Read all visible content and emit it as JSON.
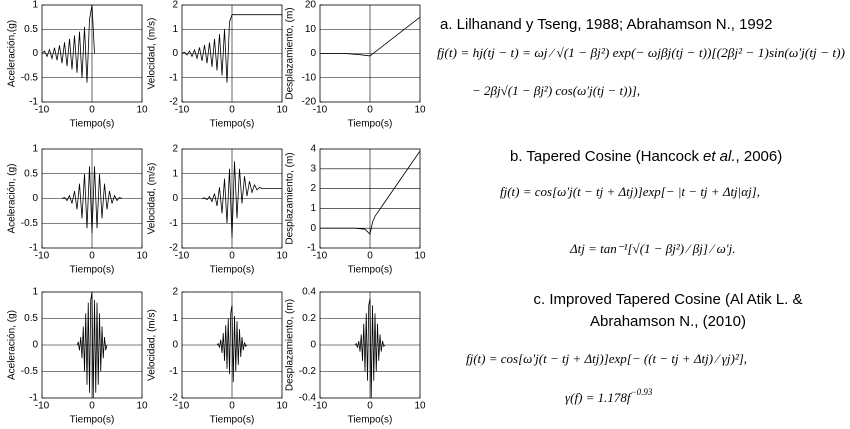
{
  "chart_data": [
    {
      "type": "line",
      "ylabel": "Aceleración,(g)",
      "xlabel": "Tiempo(s)",
      "xlim": [
        -10,
        10
      ],
      "ylim": [
        -1,
        1
      ],
      "xticks": [
        -10,
        0,
        10
      ],
      "yticks": [
        -1,
        -0.5,
        0,
        0.5,
        1
      ],
      "x": [
        -10,
        -9.5,
        -9,
        -8.5,
        -8,
        -7.5,
        -7,
        -6.5,
        -6,
        -5.5,
        -5,
        -4.5,
        -4,
        -3.5,
        -3,
        -2.5,
        -2,
        -1.5,
        -1,
        -0.5,
        0,
        0.5
      ],
      "values": [
        0,
        0.05,
        -0.06,
        0.08,
        -0.1,
        0.12,
        -0.14,
        0.17,
        -0.2,
        0.23,
        -0.26,
        0.3,
        -0.33,
        0.37,
        -0.4,
        0.45,
        -0.5,
        0.55,
        -0.6,
        0.7,
        1,
        0
      ]
    },
    {
      "type": "line",
      "ylabel": "Velocidad, (m/s)",
      "xlabel": "Tiempo(s)",
      "xlim": [
        -10,
        10
      ],
      "ylim": [
        -2,
        2
      ],
      "xticks": [
        -10,
        0,
        10
      ],
      "yticks": [
        -2,
        -1,
        0,
        1,
        2
      ],
      "x": [
        -10,
        -9.5,
        -9,
        -8.5,
        -8,
        -7.5,
        -7,
        -6.5,
        -6,
        -5.5,
        -5,
        -4.5,
        -4,
        -3.5,
        -3,
        -2.5,
        -2,
        -1.5,
        -1,
        -0.5,
        0,
        10
      ],
      "values": [
        0,
        0.05,
        -0.06,
        0.1,
        -0.12,
        0.15,
        -0.2,
        0.25,
        -0.3,
        0.35,
        -0.4,
        0.45,
        -0.55,
        0.6,
        -0.7,
        0.8,
        -0.9,
        1,
        -1.2,
        1.3,
        1.6,
        1.6
      ]
    },
    {
      "type": "line",
      "ylabel": "Desplazamiento, (m)",
      "xlabel": "Tiempo(s)",
      "xlim": [
        -10,
        10
      ],
      "ylim": [
        -20,
        20
      ],
      "xticks": [
        -10,
        0,
        10
      ],
      "yticks": [
        -20,
        -10,
        0,
        10,
        20
      ],
      "x": [
        -10,
        -5,
        -2,
        0,
        10
      ],
      "values": [
        0,
        0,
        -0.5,
        -1,
        15
      ]
    },
    {
      "type": "line",
      "ylabel": "Aceleración, (g)",
      "xlabel": "Tiempo(s)",
      "xlim": [
        -10,
        10
      ],
      "ylim": [
        -1,
        1
      ],
      "xticks": [
        -10,
        0,
        10
      ],
      "yticks": [
        -1,
        -0.5,
        0,
        0.5,
        1
      ],
      "x": [
        -6,
        -5.5,
        -5,
        -4.5,
        -4,
        -3.5,
        -3,
        -2.5,
        -2,
        -1.5,
        -1,
        -0.5,
        0,
        0.5,
        1,
        1.5,
        2,
        2.5,
        3,
        3.5,
        4,
        4.5,
        5,
        5.5,
        6
      ],
      "values": [
        0,
        0.02,
        -0.04,
        0.06,
        -0.1,
        0.15,
        -0.22,
        0.3,
        -0.4,
        0.5,
        -0.6,
        0.65,
        -0.7,
        0.65,
        -0.6,
        0.5,
        -0.4,
        0.3,
        -0.22,
        0.15,
        -0.1,
        0.06,
        -0.04,
        0.02,
        0
      ]
    },
    {
      "type": "line",
      "ylabel": "Velocidad, (m/s)",
      "xlabel": "Tiempo(s)",
      "xlim": [
        -10,
        10
      ],
      "ylim": [
        -2,
        2
      ],
      "xticks": [
        -10,
        0,
        10
      ],
      "yticks": [
        -2,
        -1,
        0,
        1,
        2
      ],
      "x": [
        -6,
        -5.5,
        -5,
        -4.5,
        -4,
        -3.5,
        -3,
        -2.5,
        -2,
        -1.5,
        -1,
        -0.5,
        0,
        0.5,
        1,
        1.5,
        2,
        2.5,
        3,
        3.5,
        4,
        4.5,
        5,
        5.5,
        6,
        10
      ],
      "values": [
        0,
        0.03,
        -0.05,
        0.08,
        -0.12,
        0.2,
        -0.3,
        0.45,
        -0.6,
        0.8,
        -1,
        1.2,
        -1.6,
        1.5,
        -0.8,
        1.2,
        -0.2,
        0.9,
        0.1,
        0.7,
        0.25,
        0.55,
        0.35,
        0.45,
        0.4,
        0.4
      ]
    },
    {
      "type": "line",
      "ylabel": "Desplazamiento, (m)",
      "xlabel": "Tiempo(s)",
      "xlim": [
        -10,
        10
      ],
      "ylim": [
        -1,
        4
      ],
      "xticks": [
        -10,
        0,
        10
      ],
      "yticks": [
        -1,
        0,
        1,
        2,
        3,
        4
      ],
      "x": [
        -10,
        -3,
        -1,
        0,
        0.5,
        1,
        10
      ],
      "values": [
        0,
        0,
        -0.05,
        -0.3,
        0.3,
        0.6,
        3.9
      ]
    },
    {
      "type": "line",
      "ylabel": "Aceleración, (g)",
      "xlabel": "Tiempo(s)",
      "xlim": [
        -10,
        10
      ],
      "ylim": [
        -1,
        1
      ],
      "xticks": [
        -10,
        0,
        10
      ],
      "yticks": [
        -1,
        -0.5,
        0,
        0.5,
        1
      ],
      "x": [
        -3,
        -2.75,
        -2.5,
        -2.25,
        -2,
        -1.75,
        -1.5,
        -1.25,
        -1,
        -0.75,
        -0.5,
        -0.25,
        0,
        0.25,
        0.5,
        0.75,
        1,
        1.25,
        1.5,
        1.75,
        2,
        2.25,
        2.5,
        2.75,
        3
      ],
      "values": [
        0,
        0.05,
        -0.1,
        0.15,
        -0.25,
        0.35,
        -0.5,
        0.6,
        -0.75,
        0.8,
        -0.9,
        0.85,
        1,
        -1,
        0.85,
        -0.9,
        0.8,
        -0.75,
        0.6,
        -0.5,
        0.35,
        -0.25,
        0.15,
        -0.1,
        0
      ]
    },
    {
      "type": "line",
      "ylabel": "Velocidad, (m/s)",
      "xlabel": "Tiempo(s)",
      "xlim": [
        -10,
        10
      ],
      "ylim": [
        -2,
        2
      ],
      "xticks": [
        -10,
        0,
        10
      ],
      "yticks": [
        -2,
        -1,
        0,
        1,
        2
      ],
      "x": [
        -3,
        -2.75,
        -2.5,
        -2.25,
        -2,
        -1.75,
        -1.5,
        -1.25,
        -1,
        -0.75,
        -0.5,
        -0.25,
        0,
        0.25,
        0.5,
        0.75,
        1,
        1.25,
        1.5,
        1.75,
        2,
        2.25,
        2.5,
        2.75,
        3
      ],
      "values": [
        0,
        0.05,
        -0.1,
        0.2,
        -0.3,
        0.45,
        -0.6,
        0.75,
        -0.9,
        1,
        -1.1,
        1.2,
        1.5,
        -1.4,
        1.1,
        -1,
        0.9,
        -0.75,
        0.6,
        -0.45,
        0.3,
        -0.2,
        0.1,
        -0.05,
        0
      ]
    },
    {
      "type": "line",
      "ylabel": "Desplazamiento, (m)",
      "xlabel": "Tiempo(s)",
      "xlim": [
        -10,
        10
      ],
      "ylim": [
        -0.4,
        0.4
      ],
      "xticks": [
        -10,
        0,
        10
      ],
      "yticks": [
        -0.4,
        -0.2,
        0,
        0.2,
        0.4
      ],
      "x": [
        -3,
        -2.75,
        -2.5,
        -2.25,
        -2,
        -1.75,
        -1.5,
        -1.25,
        -1,
        -0.75,
        -0.5,
        -0.25,
        0,
        0.25,
        0.5,
        0.75,
        1,
        1.25,
        1.5,
        1.75,
        2,
        2.25,
        2.5,
        2.75,
        3
      ],
      "values": [
        0,
        0.01,
        -0.02,
        0.03,
        -0.05,
        0.08,
        -0.12,
        0.16,
        -0.2,
        0.24,
        -0.27,
        0.3,
        0.35,
        -0.4,
        0.3,
        -0.27,
        0.24,
        -0.2,
        0.16,
        -0.12,
        0.08,
        -0.05,
        0.03,
        -0.01,
        0
      ]
    }
  ],
  "methods": {
    "a": {
      "title": "a. Lilhanand y Tseng, 1988; Abrahamson N., 1992",
      "equation": [
        "fj(t) = hj(tj − t) = ωj ⁄ √(1 − βj²) exp(− ωjβj(tj − t))[(2βj² − 1)sin(ω′j(tj − t))",
        "− 2βj√(1 − βj²) cos(ω′j(tj − t))],"
      ]
    },
    "b": {
      "title": [
        "b. Tapered Cosine (Hancock",
        "et al.",
        ", 2006)"
      ],
      "equation": [
        "fj(t) = cos[ω′j(t − tj + Δtj)]exp[− |t − tj + Δtj|αj],",
        "Δtj = tan⁻¹[√(1 − βj²) ⁄ βj] ⁄ ω′j."
      ]
    },
    "c": {
      "title": [
        "c. Improved Tapered Cosine (Al Atik L. &",
        "Abrahamson N., (2010)"
      ],
      "equation": [
        "fj(t) = cos[ω′j(t − tj + Δtj)]exp[− ((t − tj + Δtj) ⁄ γj)²],",
        "γ(f) = 1.178f",
        "−0.93"
      ]
    }
  }
}
